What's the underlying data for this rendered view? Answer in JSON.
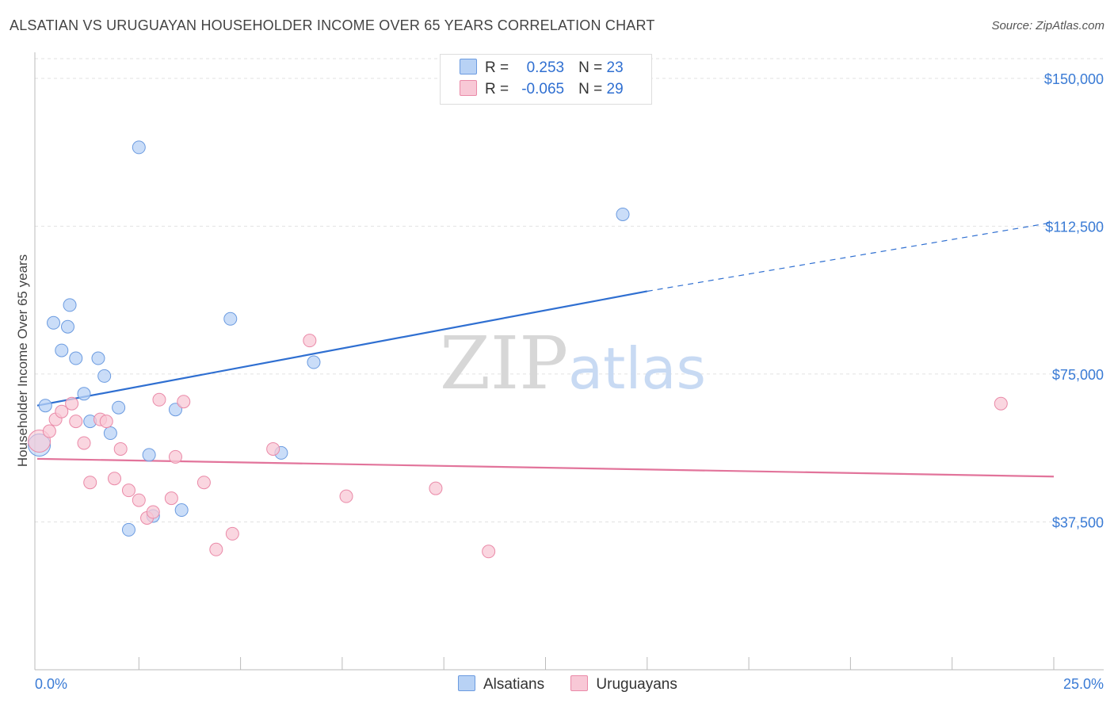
{
  "chart_data": {
    "type": "scatter",
    "title": "ALSATIAN VS URUGUAYAN HOUSEHOLDER INCOME OVER 65 YEARS CORRELATION CHART",
    "source": "Source: ZipAtlas.com",
    "xlabel": "",
    "ylabel": "Householder Income Over 65 years",
    "xlim": [
      0,
      25
    ],
    "ylim": [
      0,
      155000
    ],
    "x_tick_labels": [
      "0.0%",
      "25.0%"
    ],
    "y_ticks": [
      37500,
      75000,
      112500,
      150000
    ],
    "y_tick_labels": [
      "$37,500",
      "$75,000",
      "$112,500",
      "$150,000"
    ],
    "watermark": {
      "part1": "ZIP",
      "part2": "atlas"
    },
    "legend": {
      "rows": [
        {
          "r_label": "R =",
          "r_value": "0.253",
          "n_label": "N =",
          "n_value": "23"
        },
        {
          "r_label": "R =",
          "r_value": "-0.065",
          "n_label": "N =",
          "n_value": "29"
        }
      ]
    },
    "series": [
      {
        "name": "Alsatians",
        "fill": "#b8d2f5",
        "stroke": "#6b9be0",
        "line_color": "#2f6fd1",
        "trend": {
          "x0": 0.0,
          "y0": 67000,
          "x1": 15.0,
          "y1": 96000,
          "x_dash_end": 25.0,
          "y_dash_end": 113500
        },
        "points": [
          [
            0.05,
            57000
          ],
          [
            0.2,
            67000
          ],
          [
            0.4,
            88000
          ],
          [
            0.6,
            81000
          ],
          [
            0.75,
            87000
          ],
          [
            0.8,
            92500
          ],
          [
            0.95,
            79000
          ],
          [
            1.15,
            70000
          ],
          [
            1.3,
            63000
          ],
          [
            1.5,
            79000
          ],
          [
            1.65,
            74500
          ],
          [
            1.8,
            60000
          ],
          [
            2.0,
            66500
          ],
          [
            2.25,
            35500
          ],
          [
            2.5,
            132500
          ],
          [
            2.75,
            54500
          ],
          [
            2.85,
            39000
          ],
          [
            3.4,
            66000
          ],
          [
            3.55,
            40500
          ],
          [
            4.75,
            89000
          ],
          [
            6.0,
            55000
          ],
          [
            6.8,
            78000
          ],
          [
            14.4,
            115500
          ]
        ]
      },
      {
        "name": "Uruguayans",
        "fill": "#f8c8d6",
        "stroke": "#ea8aa8",
        "line_color": "#e2749b",
        "trend": {
          "x0": 0.0,
          "y0": 53500,
          "x1": 25.0,
          "y1": 49000
        },
        "points": [
          [
            0.05,
            58000
          ],
          [
            0.3,
            60500
          ],
          [
            0.45,
            63500
          ],
          [
            0.6,
            65500
          ],
          [
            0.85,
            67500
          ],
          [
            0.95,
            63000
          ],
          [
            1.15,
            57500
          ],
          [
            1.3,
            47500
          ],
          [
            1.55,
            63500
          ],
          [
            1.7,
            63000
          ],
          [
            1.9,
            48500
          ],
          [
            2.05,
            56000
          ],
          [
            2.25,
            45500
          ],
          [
            2.5,
            43000
          ],
          [
            2.7,
            38500
          ],
          [
            2.85,
            40000
          ],
          [
            3.0,
            68500
          ],
          [
            3.3,
            43500
          ],
          [
            3.4,
            54000
          ],
          [
            3.6,
            68000
          ],
          [
            4.1,
            47500
          ],
          [
            4.4,
            30500
          ],
          [
            4.8,
            34500
          ],
          [
            5.8,
            56000
          ],
          [
            6.7,
            83500
          ],
          [
            7.6,
            44000
          ],
          [
            9.8,
            46000
          ],
          [
            11.1,
            30000
          ],
          [
            23.7,
            67500
          ]
        ]
      }
    ]
  }
}
